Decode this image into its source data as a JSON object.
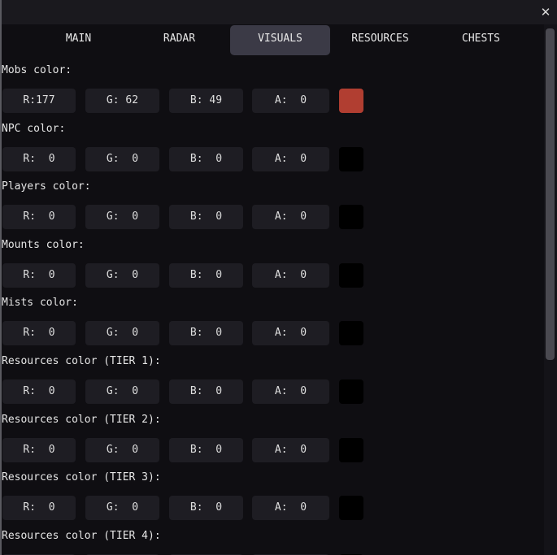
{
  "window": {
    "close_icon": "close-icon"
  },
  "tabs": [
    {
      "label": "MAIN",
      "active": false
    },
    {
      "label": "RADAR",
      "active": false
    },
    {
      "label": "VISUALS",
      "active": true
    },
    {
      "label": "RESOURCES",
      "active": false
    },
    {
      "label": "CHESTS",
      "active": false
    }
  ],
  "sections": [
    {
      "label": "Mobs color:",
      "r": 177,
      "g": 62,
      "b": 49,
      "a": 0,
      "swatch": "#b13e31"
    },
    {
      "label": "NPC color:",
      "r": 0,
      "g": 0,
      "b": 0,
      "a": 0,
      "swatch": "#000000"
    },
    {
      "label": "Players color:",
      "r": 0,
      "g": 0,
      "b": 0,
      "a": 0,
      "swatch": "#000000"
    },
    {
      "label": "Mounts color:",
      "r": 0,
      "g": 0,
      "b": 0,
      "a": 0,
      "swatch": "#000000"
    },
    {
      "label": "Mists color:",
      "r": 0,
      "g": 0,
      "b": 0,
      "a": 0,
      "swatch": "#000000"
    },
    {
      "label": "Resources color (TIER 1):",
      "r": 0,
      "g": 0,
      "b": 0,
      "a": 0,
      "swatch": "#000000"
    },
    {
      "label": "Resources color (TIER 2):",
      "r": 0,
      "g": 0,
      "b": 0,
      "a": 0,
      "swatch": "#000000"
    },
    {
      "label": "Resources color (TIER 3):",
      "r": 0,
      "g": 0,
      "b": 0,
      "a": 0,
      "swatch": "#000000"
    },
    {
      "label": "Resources color (TIER 4):",
      "r": null,
      "g": null,
      "b": null,
      "a": null,
      "swatch": null
    }
  ],
  "channel_labels": {
    "r": "R",
    "g": "G",
    "b": "B",
    "a": "A"
  },
  "colors": {
    "background": "#0f0e12",
    "field": "#1e1d23",
    "active_tab": "#3b3a46"
  }
}
